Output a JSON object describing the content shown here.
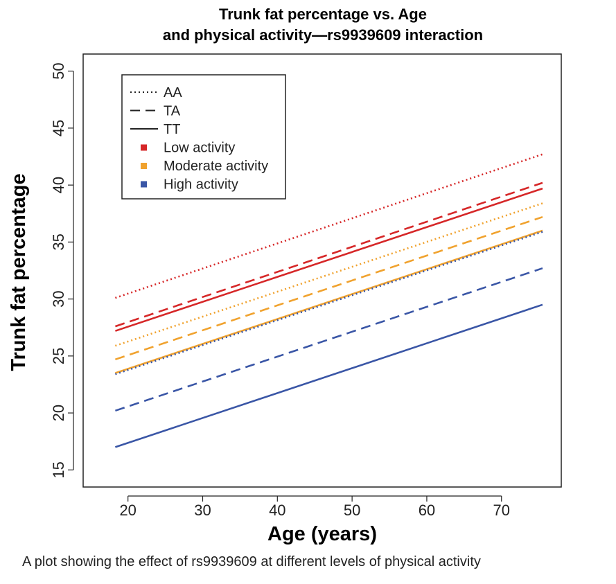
{
  "caption": "A plot showing the effect of rs9939609 at different levels of physical activity",
  "chart_data": {
    "type": "line",
    "title_line1": "Trunk fat percentage vs. Age",
    "title_line2": "and physical activity—rs9939609 interaction",
    "xlabel": "Age (years)",
    "ylabel": "Trunk fat percentage",
    "xlim": [
      14,
      78
    ],
    "ylim": [
      13.5,
      51.5
    ],
    "x_ticks": [
      20,
      30,
      40,
      50,
      60,
      70
    ],
    "y_ticks": [
      15,
      20,
      25,
      30,
      35,
      40,
      45,
      50
    ],
    "grid": false,
    "legend_position": "top-left",
    "legend": [
      {
        "label": "AA",
        "kind": "line",
        "style": "dotted"
      },
      {
        "label": "TA",
        "kind": "line",
        "style": "dashed"
      },
      {
        "label": "TT",
        "kind": "line",
        "style": "solid"
      },
      {
        "label": "Low activity",
        "kind": "swatch",
        "color": "#d62728"
      },
      {
        "label": "Moderate activity",
        "kind": "swatch",
        "color": "#f0a22e"
      },
      {
        "label": "High activity",
        "kind": "swatch",
        "color": "#3a56a6"
      }
    ],
    "series": [
      {
        "activity": "Low activity",
        "genotype": "AA",
        "color": "#d62728",
        "style": "dotted",
        "x": [
          18.3,
          75.5
        ],
        "y": [
          30.1,
          42.7
        ]
      },
      {
        "activity": "Low activity",
        "genotype": "TA",
        "color": "#d62728",
        "style": "dashed",
        "x": [
          18.3,
          75.5
        ],
        "y": [
          27.6,
          40.2
        ]
      },
      {
        "activity": "Low activity",
        "genotype": "TT",
        "color": "#d62728",
        "style": "solid",
        "x": [
          18.3,
          75.5
        ],
        "y": [
          27.2,
          39.7
        ]
      },
      {
        "activity": "Moderate activity",
        "genotype": "AA",
        "color": "#f0a22e",
        "style": "dotted",
        "x": [
          18.3,
          75.5
        ],
        "y": [
          25.9,
          38.4
        ]
      },
      {
        "activity": "Moderate activity",
        "genotype": "TA",
        "color": "#f0a22e",
        "style": "dashed",
        "x": [
          18.3,
          75.5
        ],
        "y": [
          24.7,
          37.2
        ]
      },
      {
        "activity": "Moderate activity",
        "genotype": "TT",
        "color": "#f0a22e",
        "style": "solid",
        "x": [
          18.3,
          75.5
        ],
        "y": [
          23.5,
          36.0
        ]
      },
      {
        "activity": "High activity",
        "genotype": "AA",
        "color": "#3a56a6",
        "style": "dotted",
        "x": [
          18.3,
          75.5
        ],
        "y": [
          23.4,
          35.9
        ]
      },
      {
        "activity": "High activity",
        "genotype": "TA",
        "color": "#3a56a6",
        "style": "dashed",
        "x": [
          18.3,
          75.5
        ],
        "y": [
          20.2,
          32.7
        ]
      },
      {
        "activity": "High activity",
        "genotype": "TT",
        "color": "#3a56a6",
        "style": "solid",
        "x": [
          18.3,
          75.5
        ],
        "y": [
          17.0,
          29.5
        ]
      }
    ]
  }
}
